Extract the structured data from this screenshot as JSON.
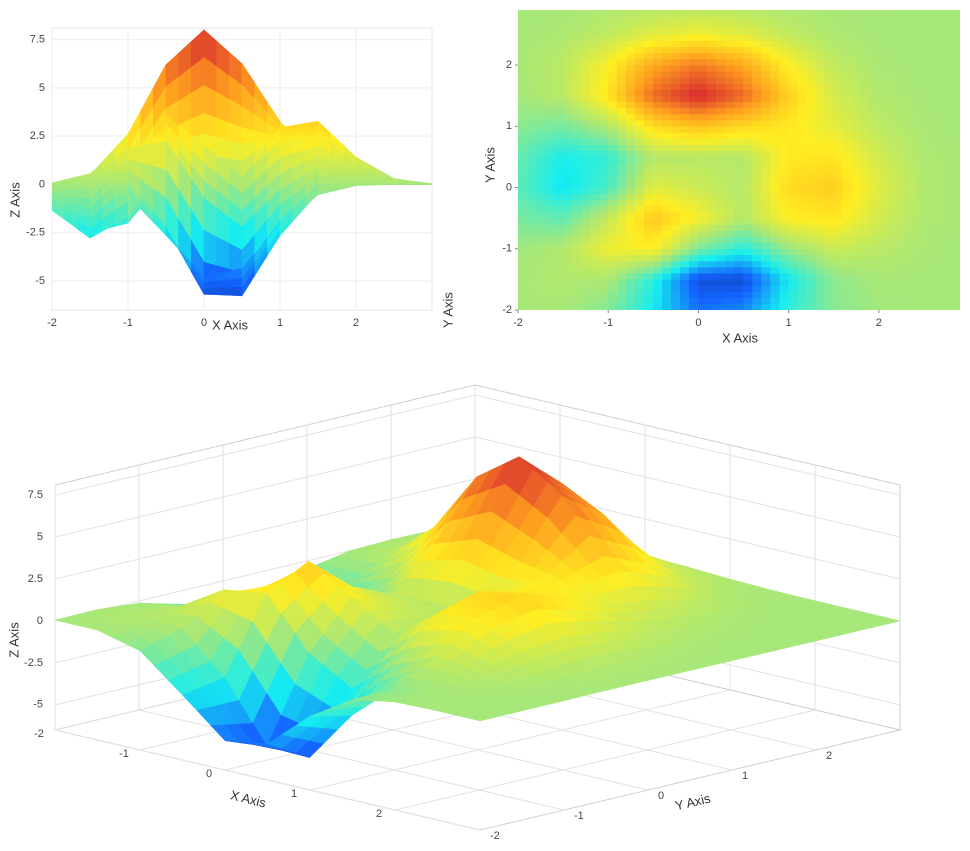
{
  "chart_data": [
    {
      "type": "surface-side",
      "x": [
        -2,
        -1.5,
        -1,
        -0.5,
        0,
        0.5,
        1,
        1.5,
        2,
        2.5,
        3
      ],
      "y": [
        -2,
        -1.5,
        -1,
        -0.5,
        0,
        0.5,
        1,
        1.5,
        2,
        2.5,
        3
      ],
      "z": [
        [
          0.047,
          0.045,
          -0.59,
          -2.635,
          -4.754,
          -4.342,
          -2.101,
          -0.529,
          -0.062,
          -0.001,
          0
        ],
        [
          0.079,
          0.327,
          0.148,
          -2.187,
          -5.681,
          -5.762,
          -2.636,
          -0.44,
          0.043,
          0.025,
          0.004
        ],
        [
          -0.13,
          0.3,
          1.856,
          2.225,
          -0.724,
          -2.222,
          -0.273,
          0.884,
          0.499,
          0.113,
          0.013
        ],
        [
          -0.798,
          -1.213,
          0.797,
          3.551,
          1.998,
          0.39,
          2.197,
          2.561,
          1.122,
          0.237,
          0.026
        ],
        [
          -1.331,
          -2.773,
          -1.652,
          1.479,
          0.981,
          0.375,
          2.937,
          3.27,
          1.411,
          0.297,
          0.033
        ],
        [
          -1.122,
          -2.493,
          -1.997,
          0.39,
          0.464,
          0.376,
          2.376,
          2.558,
          1.094,
          0.229,
          0.025
        ],
        [
          -0.48,
          -0.864,
          0.229,
          2.794,
          3.689,
          2.935,
          2.434,
          1.581,
          0.58,
          0.114,
          0.012
        ],
        [
          -0.012,
          0.479,
          2.609,
          6.196,
          7.997,
          6.251,
          3.254,
          1.185,
          0.293,
          0.046,
          0.004
        ],
        [
          0.08,
          0.553,
          2.095,
          4.553,
          5.854,
          4.563,
          2.208,
          0.677,
          0.133,
          0.017,
          0.001
        ],
        [
          0.032,
          0.191,
          0.687,
          1.467,
          1.885,
          1.468,
          0.699,
          0.204,
          0.037,
          0.004,
          0
        ],
        [
          0.005,
          0.031,
          0.11,
          0.233,
          0.299,
          0.233,
          0.11,
          0.032,
          0.006,
          0,
          0
        ]
      ],
      "xlim": [
        -2,
        3
      ],
      "xticks": [
        -2,
        -1,
        0,
        1,
        2
      ],
      "zlim": [
        -6.5,
        8.1
      ],
      "zticks": [
        -5,
        -2.5,
        0,
        2.5,
        5,
        7.5
      ],
      "x_label": "X Axis",
      "y_label": "Y Axis",
      "z_label": "Z Axis",
      "grid": true,
      "colorscale": [
        [
          0,
          "#0b3aa3"
        ],
        [
          0.1,
          "#1463ff"
        ],
        [
          0.27,
          "#16eef0"
        ],
        [
          0.445,
          "#a6e87a"
        ],
        [
          0.6,
          "#ffee22"
        ],
        [
          0.78,
          "#ff9e1f"
        ],
        [
          1,
          "#d52231"
        ]
      ]
    },
    {
      "type": "heatmap",
      "x": [
        -2,
        -1.5,
        -1,
        -0.5,
        0,
        0.5,
        1,
        1.5,
        2,
        2.5,
        3
      ],
      "y": [
        -2,
        -1.5,
        -1,
        -0.5,
        0,
        0.5,
        1,
        1.5,
        2,
        2.5,
        3
      ],
      "z": [
        [
          0.047,
          0.045,
          -0.59,
          -2.635,
          -4.754,
          -4.342,
          -2.101,
          -0.529,
          -0.062,
          -0.001,
          0
        ],
        [
          0.079,
          0.327,
          0.148,
          -2.187,
          -5.681,
          -5.762,
          -2.636,
          -0.44,
          0.043,
          0.025,
          0.004
        ],
        [
          -0.13,
          0.3,
          1.856,
          2.225,
          -0.724,
          -2.222,
          -0.273,
          0.884,
          0.499,
          0.113,
          0.013
        ],
        [
          -0.798,
          -1.213,
          0.797,
          3.551,
          1.998,
          0.39,
          2.197,
          2.561,
          1.122,
          0.237,
          0.026
        ],
        [
          -1.331,
          -2.773,
          -1.652,
          1.479,
          0.981,
          0.375,
          2.937,
          3.27,
          1.411,
          0.297,
          0.033
        ],
        [
          -1.122,
          -2.493,
          -1.997,
          0.39,
          0.464,
          0.376,
          2.376,
          2.558,
          1.094,
          0.229,
          0.025
        ],
        [
          -0.48,
          -0.864,
          0.229,
          2.794,
          3.689,
          2.935,
          2.434,
          1.581,
          0.58,
          0.114,
          0.012
        ],
        [
          -0.012,
          0.479,
          2.609,
          6.196,
          7.997,
          6.251,
          3.254,
          1.185,
          0.293,
          0.046,
          0.004
        ],
        [
          0.08,
          0.553,
          2.095,
          4.553,
          5.854,
          4.563,
          2.208,
          0.677,
          0.133,
          0.017,
          0.001
        ],
        [
          0.032,
          0.191,
          0.687,
          1.467,
          1.885,
          1.468,
          0.699,
          0.204,
          0.037,
          0.004,
          0
        ],
        [
          0.005,
          0.031,
          0.11,
          0.233,
          0.299,
          0.233,
          0.11,
          0.032,
          0.006,
          0,
          0
        ]
      ],
      "xlim": [
        -2,
        2.9
      ],
      "ylim": [
        -2,
        2.9
      ],
      "xticks": [
        -2,
        -1,
        0,
        1,
        2
      ],
      "yticks": [
        -2,
        -1,
        0,
        1,
        2
      ],
      "zlim": [
        -6.5,
        8.1
      ],
      "x_label": "X Axis",
      "y_label": "Y Axis",
      "colorscale": [
        [
          0,
          "#0b3aa3"
        ],
        [
          0.1,
          "#1463ff"
        ],
        [
          0.27,
          "#16eef0"
        ],
        [
          0.445,
          "#a6e87a"
        ],
        [
          0.6,
          "#ffee22"
        ],
        [
          0.78,
          "#ff9e1f"
        ],
        [
          1,
          "#d52231"
        ]
      ]
    },
    {
      "type": "surface-3d",
      "x": [
        -2,
        -1.5,
        -1,
        -0.5,
        0,
        0.5,
        1,
        1.5,
        2,
        2.5,
        3
      ],
      "y": [
        -2,
        -1.5,
        -1,
        -0.5,
        0,
        0.5,
        1,
        1.5,
        2,
        2.5,
        3
      ],
      "z": [
        [
          0.047,
          0.045,
          -0.59,
          -2.635,
          -4.754,
          -4.342,
          -2.101,
          -0.529,
          -0.062,
          -0.001,
          0
        ],
        [
          0.079,
          0.327,
          0.148,
          -2.187,
          -5.681,
          -5.762,
          -2.636,
          -0.44,
          0.043,
          0.025,
          0.004
        ],
        [
          -0.13,
          0.3,
          1.856,
          2.225,
          -0.724,
          -2.222,
          -0.273,
          0.884,
          0.499,
          0.113,
          0.013
        ],
        [
          -0.798,
          -1.213,
          0.797,
          3.551,
          1.998,
          0.39,
          2.197,
          2.561,
          1.122,
          0.237,
          0.026
        ],
        [
          -1.331,
          -2.773,
          -1.652,
          1.479,
          0.981,
          0.375,
          2.937,
          3.27,
          1.411,
          0.297,
          0.033
        ],
        [
          -1.122,
          -2.493,
          -1.997,
          0.39,
          0.464,
          0.376,
          2.376,
          2.558,
          1.094,
          0.229,
          0.025
        ],
        [
          -0.48,
          -0.864,
          0.229,
          2.794,
          3.689,
          2.935,
          2.434,
          1.581,
          0.58,
          0.114,
          0.012
        ],
        [
          -0.012,
          0.479,
          2.609,
          6.196,
          7.997,
          6.251,
          3.254,
          1.185,
          0.293,
          0.046,
          0.004
        ],
        [
          0.08,
          0.553,
          2.095,
          4.553,
          5.854,
          4.563,
          2.208,
          0.677,
          0.133,
          0.017,
          0.001
        ],
        [
          0.032,
          0.191,
          0.687,
          1.467,
          1.885,
          1.468,
          0.699,
          0.204,
          0.037,
          0.004,
          0
        ],
        [
          0.005,
          0.031,
          0.11,
          0.233,
          0.299,
          0.233,
          0.11,
          0.032,
          0.006,
          0,
          0
        ]
      ],
      "xlim": [
        -2,
        3
      ],
      "ylim": [
        -2,
        3
      ],
      "zlim": [
        -6.5,
        8.1
      ],
      "xticks": [
        -2,
        -1,
        0,
        1,
        2
      ],
      "yticks": [
        -2,
        -1,
        0,
        1,
        2
      ],
      "zticks": [
        -5,
        -2.5,
        0,
        2.5,
        5,
        7.5
      ],
      "x_label": "X Axis",
      "y_label": "Y Axis",
      "z_label": "Z Axis",
      "grid": true,
      "colorscale": [
        [
          0,
          "#0b3aa3"
        ],
        [
          0.1,
          "#1463ff"
        ],
        [
          0.27,
          "#16eef0"
        ],
        [
          0.445,
          "#a6e87a"
        ],
        [
          0.6,
          "#ffee22"
        ],
        [
          0.78,
          "#ff9e1f"
        ],
        [
          1,
          "#d52231"
        ]
      ]
    }
  ]
}
